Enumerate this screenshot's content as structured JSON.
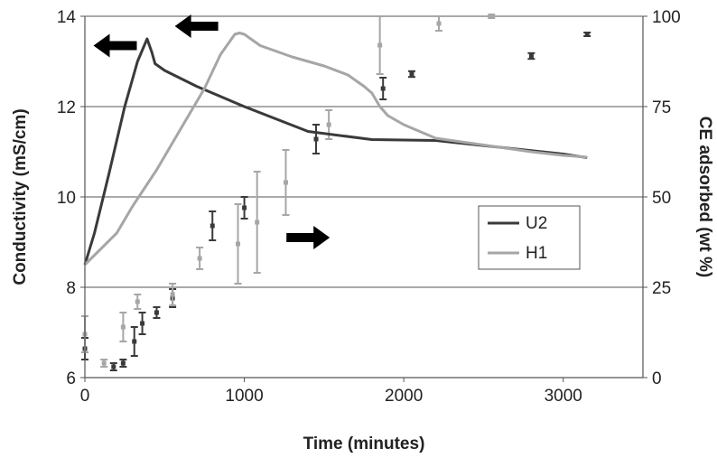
{
  "chart_data": {
    "type": "line",
    "xlabel": "Time (minutes)",
    "ylabel": "Conductivity (mS/cm)",
    "y2label": "CE adsorbed (wt %)",
    "xlim": [
      0,
      3500
    ],
    "ylim": [
      6,
      14
    ],
    "y2lim": [
      0,
      100
    ],
    "x_ticks": [
      "0",
      "1000",
      "2000",
      "3000"
    ],
    "y_ticks": [
      "6",
      "8",
      "10",
      "12",
      "14"
    ],
    "y2_ticks": [
      "0",
      "25",
      "50",
      "75",
      "100"
    ],
    "grid": "horizontal",
    "legend_position": "center-right",
    "series": [
      {
        "name": "U2",
        "color": "#3a3a3a",
        "axis": "left",
        "x": [
          0,
          60,
          150,
          250,
          330,
          390,
          420,
          440,
          500,
          700,
          1000,
          1400,
          1800,
          2200,
          2600,
          3000,
          3150
        ],
        "y": [
          8.5,
          9.2,
          10.5,
          12.0,
          13.0,
          13.5,
          13.2,
          12.95,
          12.8,
          12.45,
          12.0,
          11.45,
          11.27,
          11.25,
          11.1,
          10.95,
          10.87
        ]
      },
      {
        "name": "H1",
        "color": "#a6a6a6",
        "axis": "left",
        "x": [
          0,
          100,
          200,
          300,
          450,
          600,
          750,
          850,
          940,
          970,
          1000,
          1100,
          1300,
          1500,
          1650,
          1750,
          1800,
          1850,
          1900,
          2000,
          2200,
          2400,
          2600,
          2800,
          3000,
          3150
        ],
        "y": [
          8.5,
          8.85,
          9.2,
          9.8,
          10.6,
          11.5,
          12.4,
          13.15,
          13.6,
          13.63,
          13.6,
          13.35,
          13.1,
          12.9,
          12.7,
          12.45,
          12.3,
          12.0,
          11.8,
          11.6,
          11.3,
          11.2,
          11.1,
          11.0,
          10.92,
          10.88
        ]
      }
    ],
    "error_series": [
      {
        "name": "U2 CE adsorbed",
        "color": "#3a3a3a",
        "axis": "right",
        "points": [
          {
            "x": 0,
            "y": 8,
            "err": 3
          },
          {
            "x": 180,
            "y": 3,
            "err": 1
          },
          {
            "x": 240,
            "y": 4,
            "err": 1
          },
          {
            "x": 310,
            "y": 10,
            "err": 4
          },
          {
            "x": 360,
            "y": 15,
            "err": 3
          },
          {
            "x": 450,
            "y": 18,
            "err": 1.5
          },
          {
            "x": 550,
            "y": 22,
            "err": 2.5
          },
          {
            "x": 800,
            "y": 42,
            "err": 4
          },
          {
            "x": 1000,
            "y": 47,
            "err": 3
          },
          {
            "x": 1450,
            "y": 66,
            "err": 4
          },
          {
            "x": 1870,
            "y": 80,
            "err": 3
          },
          {
            "x": 2050,
            "y": 84,
            "err": 0.8
          },
          {
            "x": 2800,
            "y": 89,
            "err": 0.8
          },
          {
            "x": 3150,
            "y": 95,
            "err": 0.5
          }
        ]
      },
      {
        "name": "H1 CE adsorbed",
        "color": "#a6a6a6",
        "axis": "right",
        "points": [
          {
            "x": 0,
            "y": 12,
            "err": 5
          },
          {
            "x": 120,
            "y": 4,
            "err": 1
          },
          {
            "x": 240,
            "y": 14,
            "err": 4
          },
          {
            "x": 330,
            "y": 21,
            "err": 2
          },
          {
            "x": 550,
            "y": 23,
            "err": 3
          },
          {
            "x": 720,
            "y": 33,
            "err": 3
          },
          {
            "x": 960,
            "y": 37,
            "err": 11
          },
          {
            "x": 1080,
            "y": 43,
            "err": 14
          },
          {
            "x": 1260,
            "y": 54,
            "err": 9
          },
          {
            "x": 1530,
            "y": 70,
            "err": 4
          },
          {
            "x": 1850,
            "y": 92,
            "err": 8
          },
          {
            "x": 2220,
            "y": 98,
            "err": 2
          },
          {
            "x": 2550,
            "y": 100,
            "err": 0.5
          }
        ]
      }
    ],
    "arrows": [
      {
        "direction": "left",
        "x": 190,
        "y": 13.35
      },
      {
        "direction": "left",
        "x": 700,
        "y": 13.78
      },
      {
        "direction": "right",
        "x": 1400,
        "y": 9.1
      }
    ]
  }
}
